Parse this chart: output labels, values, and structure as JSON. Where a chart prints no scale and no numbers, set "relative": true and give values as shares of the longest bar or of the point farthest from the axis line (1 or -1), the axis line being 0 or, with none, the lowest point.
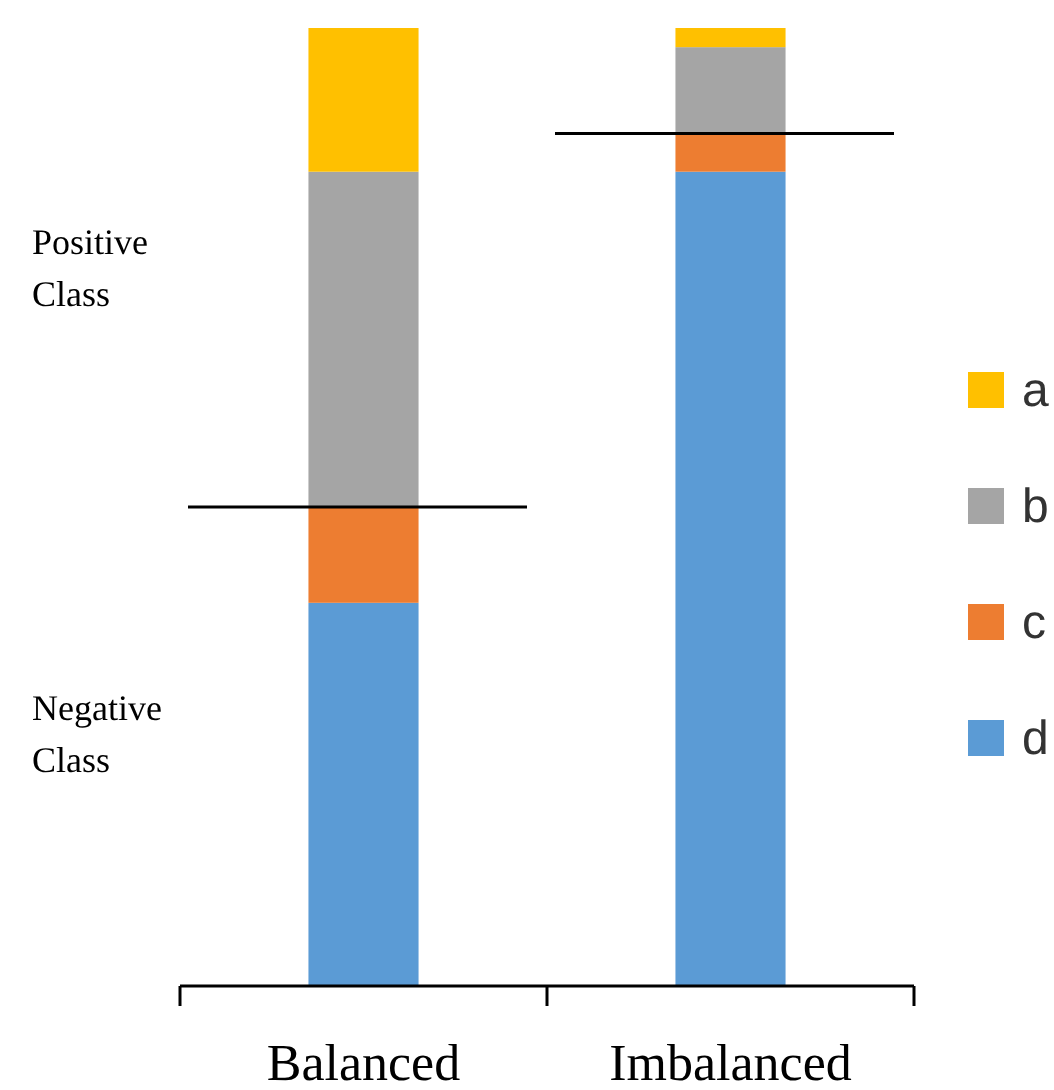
{
  "chart_data": {
    "type": "bar",
    "stacked": true,
    "relative": true,
    "categories": [
      "Balanced",
      "Imbalanced"
    ],
    "series": [
      {
        "name": "d",
        "color": "#5b9bd5",
        "values": [
          0.4,
          0.85
        ]
      },
      {
        "name": "c",
        "color": "#ed7d31",
        "values": [
          0.1,
          0.04
        ]
      },
      {
        "name": "b",
        "color": "#a5a5a5",
        "values": [
          0.35,
          0.09
        ]
      },
      {
        "name": "a",
        "color": "#ffc000",
        "values": [
          0.15,
          0.02
        ]
      }
    ],
    "ref_lines": [
      {
        "axis": "y",
        "value": 0.5,
        "color": "#000000"
      },
      {
        "axis": "y",
        "value": 0.89,
        "color": "#000000"
      }
    ],
    "annotations": [
      "Positive Class",
      "Negative Class"
    ],
    "legend": "right"
  }
}
